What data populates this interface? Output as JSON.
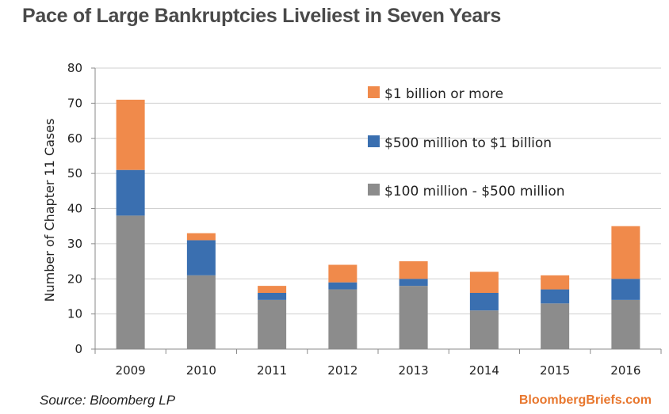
{
  "header": {
    "title": "Pace of Large Bankruptcies Liveliest in Seven Years"
  },
  "footer": {
    "source": "Source:  Bloomberg LP",
    "brand": "BloombergBriefs.com"
  },
  "chart_data": {
    "type": "bar",
    "stacked": true,
    "title": "Pace of Large Bankruptcies Liveliest in Seven Years",
    "xlabel": "",
    "ylabel": "Number of Chapter 11 Cases",
    "ylim": [
      0,
      80
    ],
    "yticks": [
      0,
      10,
      20,
      30,
      40,
      50,
      60,
      70,
      80
    ],
    "grid": true,
    "legend_placement": "top-right",
    "categories": [
      "2009",
      "2010",
      "2011",
      "2012",
      "2013",
      "2014",
      "2015",
      "2016"
    ],
    "series": [
      {
        "name": "$100 million - $500 million",
        "color": "#8c8c8c",
        "values": [
          38,
          21,
          14,
          17,
          18,
          11,
          13,
          14
        ]
      },
      {
        "name": "$500 million to $1 billion",
        "color": "#3a6fb0",
        "values": [
          13,
          10,
          2,
          2,
          2,
          5,
          4,
          6
        ]
      },
      {
        "name": "$1 billion or more",
        "color": "#f08a4b",
        "values": [
          20,
          2,
          2,
          5,
          5,
          6,
          4,
          15
        ]
      }
    ],
    "legend_order": [
      2,
      1,
      0
    ]
  }
}
